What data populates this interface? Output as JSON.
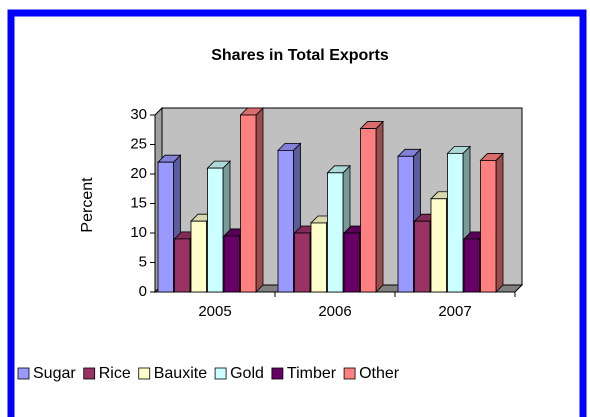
{
  "chart_data": {
    "type": "bar3d",
    "title": "Shares in Total Exports",
    "y_label": "Percent",
    "categories": [
      "2005",
      "2006",
      "2007"
    ],
    "series": [
      {
        "name": "Sugar",
        "color": "#9999ff",
        "values": [
          22,
          24,
          23
        ]
      },
      {
        "name": "Rice",
        "color": "#993366",
        "values": [
          9,
          10,
          12
        ]
      },
      {
        "name": "Bauxite",
        "color": "#ffffcc",
        "values": [
          12,
          11.7,
          15.8
        ]
      },
      {
        "name": "Gold",
        "color": "#ccffff",
        "values": [
          21,
          20.2,
          23.5
        ]
      },
      {
        "name": "Timber",
        "color": "#660066",
        "values": [
          9.5,
          10,
          9
        ]
      },
      {
        "name": "Other",
        "color": "#ff8080",
        "values": [
          30,
          27.7,
          22.3
        ]
      }
    ],
    "ylim": [
      0,
      30
    ],
    "yticks": [
      0,
      5,
      10,
      15,
      20,
      25,
      30
    ],
    "legend": "bottom"
  }
}
